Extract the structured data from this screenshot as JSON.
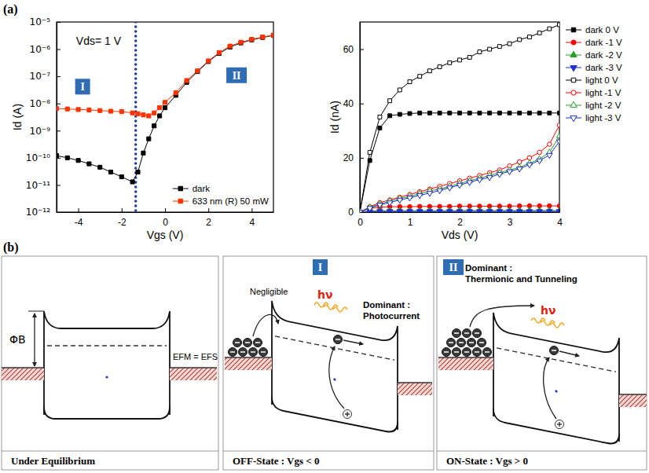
{
  "panel_labels": [
    "(a)",
    "(b)"
  ],
  "chart_data": [
    {
      "type": "line",
      "x_label": "Vgs (V)",
      "y_label": "Id (A)",
      "annotation": "Vds= 1 V",
      "region_labels": [
        "I",
        "II"
      ],
      "vline": -1.35,
      "log": "y",
      "grid": false,
      "legend": "lower right",
      "xlim": [
        -5,
        5
      ],
      "xticks": [
        -4,
        -2,
        0,
        2,
        4
      ],
      "ylim": [
        1e-12,
        1e-05
      ],
      "yticks": [
        {
          "value": 1e-12,
          "label": "10⁻¹²"
        },
        {
          "value": 1e-11,
          "label": "10⁻¹¹"
        },
        {
          "value": 1e-10,
          "label": "10⁻¹⁰"
        },
        {
          "value": 1e-09,
          "label": "10⁻⁹"
        },
        {
          "value": 1e-08,
          "label": "10⁻⁸"
        },
        {
          "value": 1e-07,
          "label": "10⁻⁷"
        },
        {
          "value": 1e-06,
          "label": "10⁻⁶"
        },
        {
          "value": 1e-05,
          "label": "10⁻⁵"
        }
      ],
      "x": [
        -5,
        -4.5,
        -4,
        -3.5,
        -3,
        -2.5,
        -2,
        -1.5,
        -1.25,
        -1,
        -0.75,
        -0.5,
        -0.25,
        0,
        0.5,
        1,
        1.5,
        2,
        2.5,
        3,
        3.5,
        4,
        4.5,
        5
      ],
      "series": [
        {
          "name": "dark",
          "color": "#000000",
          "marker": "square",
          "line_style": "solid",
          "values": [
            1.2e-10,
            1e-10,
            8e-11,
            6e-11,
            4.5e-11,
            3e-11,
            2e-11,
            1.3e-11,
            3e-11,
            1.5e-10,
            5e-10,
            1.5e-09,
            3.5e-09,
            7e-09,
            2e-08,
            6e-08,
            1.5e-07,
            3.5e-07,
            7e-07,
            1.2e-06,
            1.7e-06,
            2.2e-06,
            2.7e-06,
            3.2e-06
          ]
        },
        {
          "name": "633 nm (R) 50 mW",
          "color": "#ff3300",
          "marker": "square",
          "line_style": "solid",
          "values": [
            6.5e-09,
            6.3e-09,
            6e-09,
            5.8e-09,
            5.5e-09,
            5.2e-09,
            5e-09,
            4.5e-09,
            4.2e-09,
            3.8e-09,
            3.5e-09,
            4.5e-09,
            7e-09,
            1.1e-08,
            2.5e-08,
            7e-08,
            1.6e-07,
            3.7e-07,
            7.5e-07,
            1.3e-06,
            1.8e-06,
            2.3e-06,
            2.8e-06,
            3.3e-06
          ]
        }
      ]
    },
    {
      "type": "line",
      "x_label": "Vds (V)",
      "y_label": "Id (nA)",
      "grid": false,
      "legend": "right",
      "xlim": [
        0,
        4
      ],
      "xticks": [
        0,
        1,
        2,
        3,
        4
      ],
      "ylim": [
        0,
        70
      ],
      "yticks": [
        0,
        20,
        40,
        60
      ],
      "x": [
        0,
        0.2,
        0.4,
        0.6,
        0.8,
        1,
        1.2,
        1.4,
        1.6,
        1.8,
        2,
        2.2,
        2.4,
        2.6,
        2.8,
        3,
        3.2,
        3.4,
        3.6,
        3.8,
        4
      ],
      "series": [
        {
          "name": "dark 0 V",
          "color": "#000000",
          "marker": "square",
          "line_style": "solid",
          "values": [
            0,
            19,
            31,
            35.5,
            36,
            36.3,
            36.5,
            36.5,
            36.5,
            36.5,
            36.5,
            36.5,
            36.5,
            36.5,
            36.5,
            36.5,
            36.5,
            36.5,
            36.5,
            36.5,
            36.5
          ]
        },
        {
          "name": "dark -1 V",
          "color": "#ff0000",
          "marker": "circle",
          "line_style": "solid",
          "values": [
            0,
            1.5,
            1.8,
            2,
            2,
            2,
            2.1,
            2.1,
            2.1,
            2.1,
            2.2,
            2.2,
            2.2,
            2.2,
            2.2,
            2.2,
            2.3,
            2.3,
            2.3,
            2.3,
            2.3
          ]
        },
        {
          "name": "dark -2 V",
          "color": "#22a022",
          "marker": "triangle-up",
          "line_style": "solid",
          "values": [
            0,
            0.4,
            0.5,
            0.5,
            0.5,
            0.5,
            0.5,
            0.5,
            0.5,
            0.5,
            0.6,
            0.6,
            0.6,
            0.6,
            0.6,
            0.6,
            0.6,
            0.6,
            0.6,
            0.6,
            0.6
          ]
        },
        {
          "name": "dark -3 V",
          "color": "#1f2fd0",
          "marker": "triangle-down",
          "line_style": "solid",
          "values": [
            0,
            0.2,
            0.3,
            0.3,
            0.3,
            0.3,
            0.3,
            0.3,
            0.3,
            0.3,
            0.3,
            0.3,
            0.3,
            0.3,
            0.3,
            0.3,
            0.3,
            0.3,
            0.3,
            0.3,
            0.3
          ]
        },
        {
          "name": "light 0 V",
          "color": "#000000",
          "marker": "open-square",
          "line_style": "solid",
          "values": [
            0,
            22,
            35,
            41,
            45,
            48,
            50,
            52,
            53.5,
            55,
            56,
            57,
            59,
            60,
            61,
            62,
            63.5,
            64.5,
            66,
            67.5,
            69
          ]
        },
        {
          "name": "light -1 V",
          "color": "#ff0000",
          "marker": "open-circle",
          "line_style": "solid",
          "values": [
            0,
            2,
            3.5,
            4.5,
            5.5,
            6.5,
            7.5,
            8.5,
            9.5,
            10.5,
            11.5,
            12.5,
            13.5,
            14.5,
            15.5,
            17,
            18.5,
            20,
            22,
            25,
            32
          ]
        },
        {
          "name": "light -2 V",
          "color": "#22a022",
          "marker": "open-triangle-up",
          "line_style": "solid",
          "values": [
            0,
            1.8,
            3,
            4,
            5,
            5.8,
            6.8,
            7.8,
            8.5,
            9.5,
            10.5,
            11.5,
            12.5,
            13.5,
            14.5,
            15.5,
            16.5,
            18,
            19.5,
            22,
            28
          ]
        },
        {
          "name": "light -3 V",
          "color": "#1f2fd0",
          "marker": "open-triangle-down",
          "line_style": "solid",
          "values": [
            0,
            1.5,
            2.7,
            3.5,
            4.5,
            5.3,
            6.2,
            7,
            8,
            9,
            10,
            11,
            12,
            12.8,
            14,
            15,
            16,
            17.5,
            19,
            21,
            26
          ]
        }
      ]
    }
  ],
  "diagram": {
    "panels": [
      {
        "caption": "Under Equilibrium",
        "barrier": "ΦB",
        "fermi": "EFM = EFS"
      },
      {
        "marker": "I",
        "caption": "OFF-State : Vgs < 0",
        "blocked": "Negligible",
        "light": "hν",
        "dominant": "Dominant : Photocurrent"
      },
      {
        "marker": "II",
        "caption": "ON-State : Vgs > 0",
        "light": "hν",
        "dominant": "Dominant : Thermionic and Tunneling"
      }
    ]
  }
}
